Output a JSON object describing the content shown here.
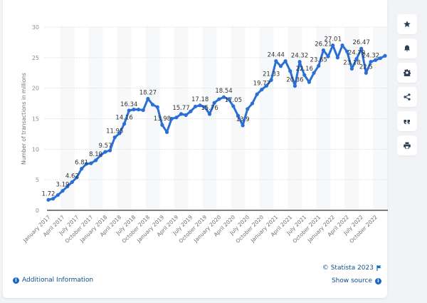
{
  "chart_data": {
    "type": "line",
    "title": "",
    "xlabel": "",
    "ylabel": "Number of transactions in millions",
    "ylim": [
      0,
      30
    ],
    "yticks": [
      0,
      5,
      10,
      15,
      20,
      25,
      30
    ],
    "grid": true,
    "legend": "none",
    "line_color": "#2a6fd6",
    "x_tick_labels": [
      "January 2017",
      "April 2017",
      "July 2017",
      "October 2017",
      "January 2018",
      "April 2018",
      "July 2018",
      "October 2018",
      "January 2019",
      "April 2019",
      "July 2019",
      "October 2019",
      "January 2020",
      "April 2020",
      "July 2020",
      "October 2020",
      "January 2021",
      "April 2021",
      "July 2021",
      "October 2021",
      "January 2022",
      "April 2022",
      "July 2022",
      "October 2022"
    ],
    "x": [
      "Jan 2017",
      "Feb 2017",
      "Mar 2017",
      "Apr 2017",
      "May 2017",
      "Jun 2017",
      "Jul 2017",
      "Aug 2017",
      "Sep 2017",
      "Oct 2017",
      "Nov 2017",
      "Dec 2017",
      "Jan 2018",
      "Feb 2018",
      "Mar 2018",
      "Apr 2018",
      "May 2018",
      "Jun 2018",
      "Jul 2018",
      "Aug 2018",
      "Sep 2018",
      "Oct 2018",
      "Nov 2018",
      "Dec 2018",
      "Jan 2019",
      "Feb 2019",
      "Mar 2019",
      "Apr 2019",
      "May 2019",
      "Jun 2019",
      "Jul 2019",
      "Aug 2019",
      "Sep 2019",
      "Oct 2019",
      "Nov 2019",
      "Dec 2019",
      "Jan 2020",
      "Feb 2020",
      "Mar 2020",
      "Apr 2020",
      "May 2020",
      "Jun 2020",
      "Jul 2020",
      "Aug 2020",
      "Sep 2020",
      "Oct 2020",
      "Nov 2020",
      "Dec 2020",
      "Jan 2021",
      "Feb 2021",
      "Mar 2021",
      "Apr 2021",
      "May 2021",
      "Jun 2021",
      "Jul 2021",
      "Aug 2021",
      "Sep 2021",
      "Oct 2021",
      "Nov 2021",
      "Dec 2021",
      "Jan 2022",
      "Feb 2022",
      "Mar 2022",
      "Apr 2022",
      "May 2022",
      "Jun 2022",
      "Jul 2022",
      "Aug 2022",
      "Sep 2022",
      "Oct 2022",
      "Nov 2022",
      "Dec 2022"
    ],
    "values": [
      1.72,
      1.9,
      2.5,
      3.19,
      3.9,
      4.62,
      5.4,
      6.81,
      7.6,
      7.7,
      8.19,
      9.0,
      9.57,
      9.8,
      11.95,
      12.6,
      14.16,
      16.34,
      16.5,
      16.5,
      16.4,
      18.27,
      17.3,
      16.9,
      13.98,
      12.8,
      15.0,
      15.2,
      15.77,
      15.6,
      16.2,
      17.0,
      17.18,
      16.9,
      15.76,
      17.6,
      18.2,
      18.54,
      18.2,
      17.05,
      15.5,
      13.9,
      16.6,
      17.5,
      19.0,
      19.77,
      20.4,
      21.33,
      24.44,
      23.6,
      24.44,
      22.8,
      20.36,
      24.32,
      22.16,
      21.0,
      22.5,
      23.65,
      26.21,
      25.2,
      27.01,
      25.0,
      27.01,
      26.0,
      23.18,
      24.79,
      26.47,
      22.5,
      24.32,
      24.6,
      24.9,
      25.3
    ],
    "data_labels": [
      {
        "index": 0,
        "text": "1.72"
      },
      {
        "index": 3,
        "text": "3.19"
      },
      {
        "index": 5,
        "text": "4.62"
      },
      {
        "index": 7,
        "text": "6.81"
      },
      {
        "index": 10,
        "text": "8.19"
      },
      {
        "index": 12,
        "text": "9.57"
      },
      {
        "index": 14,
        "text": "11.95"
      },
      {
        "index": 16,
        "text": "14.16"
      },
      {
        "index": 17,
        "text": "16.34"
      },
      {
        "index": 21,
        "text": "18.27"
      },
      {
        "index": 24,
        "text": "13.98"
      },
      {
        "index": 28,
        "text": "15.77"
      },
      {
        "index": 32,
        "text": "17.18"
      },
      {
        "index": 34,
        "text": "15.76"
      },
      {
        "index": 37,
        "text": "18.54"
      },
      {
        "index": 39,
        "text": "17.05"
      },
      {
        "index": 41,
        "text": "13.9"
      },
      {
        "index": 45,
        "text": "19.77"
      },
      {
        "index": 47,
        "text": "21.33"
      },
      {
        "index": 48,
        "text": "24.44"
      },
      {
        "index": 52,
        "text": "20.36"
      },
      {
        "index": 53,
        "text": "24.32"
      },
      {
        "index": 54,
        "text": "22.16"
      },
      {
        "index": 57,
        "text": "23.65"
      },
      {
        "index": 58,
        "text": "26.21"
      },
      {
        "index": 60,
        "text": "27.01"
      },
      {
        "index": 64,
        "text": "23.18"
      },
      {
        "index": 65,
        "text": "24.79"
      },
      {
        "index": 66,
        "text": "26.47"
      },
      {
        "index": 67,
        "text": "22.5"
      },
      {
        "index": 68,
        "text": "24.32"
      }
    ]
  },
  "sidebar": {
    "buttons": [
      {
        "icon": "star-icon",
        "label": "Favorite"
      },
      {
        "icon": "bell-icon",
        "label": "Notifications"
      },
      {
        "icon": "gear-icon",
        "label": "Settings"
      },
      {
        "icon": "share-icon",
        "label": "Share"
      },
      {
        "icon": "quote-icon",
        "label": "Cite"
      },
      {
        "icon": "print-icon",
        "label": "Print"
      }
    ]
  },
  "footer": {
    "additional_info": "Additional Information",
    "copyright": "© Statista 2023",
    "show_source": "Show source"
  }
}
